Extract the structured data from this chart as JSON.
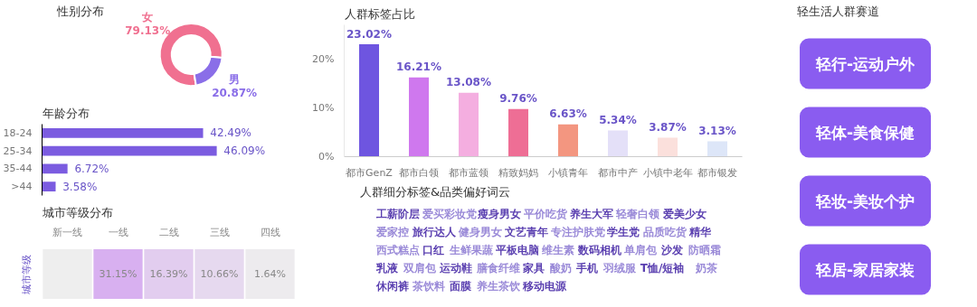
{
  "chart_data": [
    {
      "type": "donut",
      "title": "性别分布",
      "categories": [
        "女",
        "男"
      ],
      "values": [
        79.13,
        20.87
      ],
      "colors": [
        "#f07090",
        "#8a6ee8"
      ],
      "value_labels": [
        "79.13%",
        "20.87%"
      ]
    },
    {
      "type": "bar",
      "title": "人群标签占比",
      "categories": [
        "都市GenZ",
        "都市白领",
        "都市蓝领",
        "精致妈妈",
        "小镇青年",
        "都市中产",
        "小镇中老年",
        "都市银发"
      ],
      "values": [
        23.02,
        16.21,
        13.08,
        9.76,
        6.63,
        5.34,
        3.87,
        3.13
      ],
      "colors": [
        "#6e55e0",
        "#cf78ee",
        "#f4aee0",
        "#ee6e95",
        "#f39680",
        "#e4e0f8",
        "#fbe0dc",
        "#dde6f8"
      ],
      "value_labels": [
        "23.02%",
        "16.21%",
        "13.08%",
        "9.76%",
        "6.63%",
        "5.34%",
        "3.87%",
        "3.13%"
      ],
      "ylim": [
        0,
        27
      ],
      "yticks": [
        {
          "value": 0,
          "label": "0%"
        },
        {
          "value": 10,
          "label": "10%"
        },
        {
          "value": 20,
          "label": "20%"
        }
      ]
    },
    {
      "type": "other",
      "title": "轻生活人群赛道",
      "categories": [
        "轻行-运动户外",
        "轻体-美食保健",
        "轻妆-美妆个护",
        "轻居-家居家装"
      ],
      "color": "#8a5cf0"
    },
    {
      "type": "bar",
      "orientation": "horizontal",
      "title": "年龄分布",
      "categories": [
        "18-24",
        "25-34",
        "35-44",
        ">44"
      ],
      "values": [
        42.49,
        46.09,
        6.72,
        3.58
      ],
      "color": "#7b5ce0",
      "value_labels": [
        "42.49%",
        "46.09%",
        "6.72%",
        "3.58%"
      ]
    },
    {
      "type": "other",
      "title": "人群细分标签&品类偏好词云",
      "annotations": [
        "工薪阶层",
        "爱买彩妆党",
        "瘦身男女",
        "平价吃货",
        "养生大军",
        "轻奢白领",
        "爱美少女",
        "爱家控",
        "旅行达人",
        "健身男女",
        "文艺青年",
        "专注护肤党",
        "学生党",
        "品质吃货",
        "精华",
        "西式糕点",
        "口红",
        "生鲜果蔬",
        "平板电脑",
        "维生素",
        "数码相机",
        "单肩包",
        "沙发",
        "防晒霜",
        "乳液",
        "双肩包",
        "运动鞋",
        "膳食纤维",
        "家具",
        "酸奶",
        "手机",
        "羽绒服",
        "T恤/短袖",
        "奶茶",
        "休闲裤",
        "茶饮料",
        "面膜",
        "养生茶饮",
        "移动电源"
      ]
    },
    {
      "type": "heatmap",
      "title": "城市等级分布",
      "ylabel": "城市等级",
      "categories": [
        "新一线",
        "一线",
        "二线",
        "三线",
        "四线"
      ],
      "y_categories": [
        null
      ],
      "cells": [
        [
          null,
          31.15,
          16.39,
          10.66,
          1.64
        ]
      ],
      "cell_labels": [
        [
          null,
          "31.15%",
          "16.39%",
          "10.66%",
          "1.64%"
        ]
      ]
    }
  ]
}
